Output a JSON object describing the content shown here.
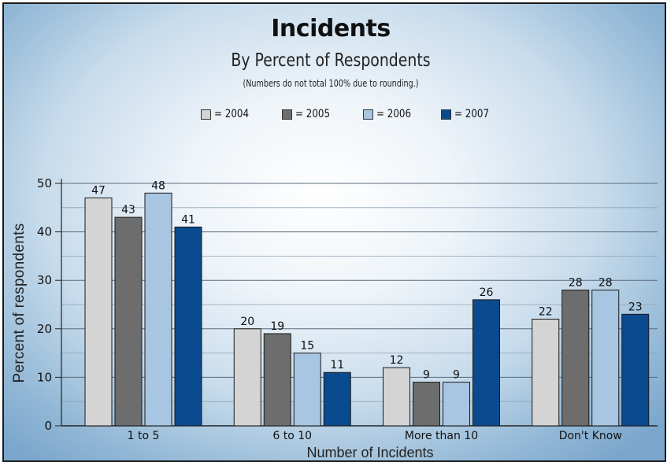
{
  "chart_data": {
    "type": "bar",
    "title": "Incidents",
    "subtitle": "By Percent of Respondents",
    "note": "(Numbers do not total 100% due to rounding.)",
    "xlabel": "Number of Incidents",
    "ylabel": "Percent of respondents",
    "ylim": [
      0,
      50
    ],
    "yticks": [
      0,
      10,
      20,
      30,
      40,
      50
    ],
    "grid": true,
    "legend_position": "top-center",
    "categories": [
      "1 to 5",
      "6 to 10",
      "More than 10",
      "Don't Know"
    ],
    "series": [
      {
        "name": "2004",
        "legend_label": "= 2004",
        "color": "#d4d4d4",
        "values": [
          47,
          20,
          12,
          22
        ]
      },
      {
        "name": "2005",
        "legend_label": "= 2005",
        "color": "#6d6d6d",
        "values": [
          43,
          19,
          9,
          28
        ]
      },
      {
        "name": "2006",
        "legend_label": "= 2006",
        "color": "#a8c6e2",
        "values": [
          48,
          15,
          9,
          28
        ]
      },
      {
        "name": "2007",
        "legend_label": "= 2007",
        "color": "#0a4a8e",
        "values": [
          41,
          11,
          26,
          23
        ]
      }
    ]
  }
}
